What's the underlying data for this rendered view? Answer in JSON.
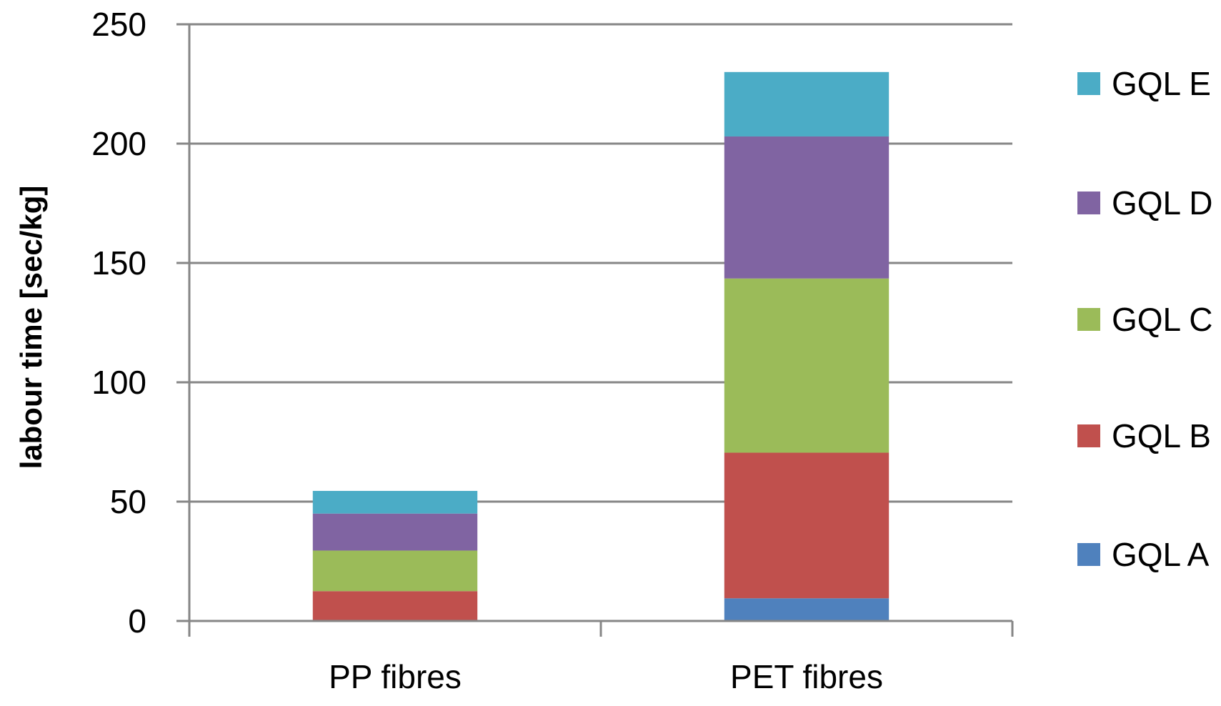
{
  "chart_data": {
    "type": "bar",
    "stacked": true,
    "title": "",
    "xlabel": "",
    "ylabel": "labour time [sec/kg]",
    "ylim": [
      0,
      250
    ],
    "yticks": [
      0,
      50,
      100,
      150,
      200,
      250
    ],
    "grid": true,
    "legend_position": "right",
    "categories": [
      "PP fibres",
      "PET fibres"
    ],
    "series": [
      {
        "name": "GQL A",
        "color": "#4F81BD",
        "values": [
          0,
          9.5
        ]
      },
      {
        "name": "GQL B",
        "color": "#C0504D",
        "values": [
          12.5,
          61
        ]
      },
      {
        "name": "GQL C",
        "color": "#9BBB59",
        "values": [
          17,
          73
        ]
      },
      {
        "name": "GQL D",
        "color": "#8064A2",
        "values": [
          15.5,
          59.5
        ]
      },
      {
        "name": "GQL E",
        "color": "#4BACC6",
        "values": [
          9.5,
          27
        ]
      }
    ]
  }
}
